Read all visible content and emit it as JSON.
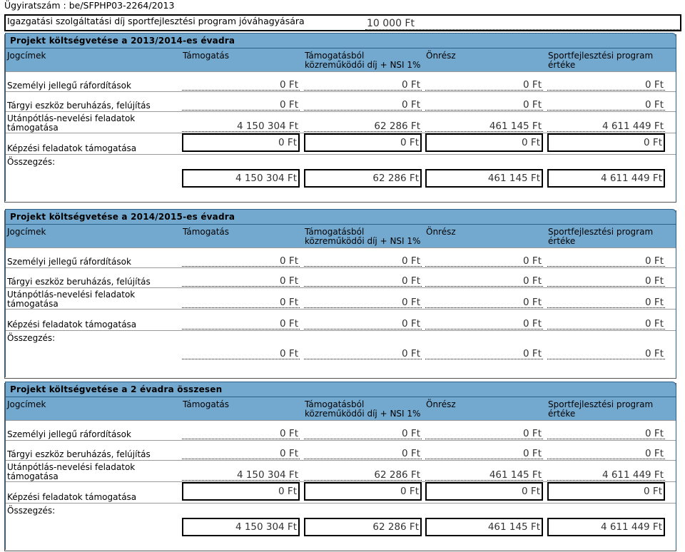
{
  "header": {
    "case_number": "Ügyiratszám : be/SFPHP03-2264/2013",
    "fee_label": "Igazgatási szolgáltatási díj sportfejlesztési program jóváhagyására",
    "fee_value": "10 000 Ft"
  },
  "columns": {
    "jogcimek": "Jogcímek",
    "tamogatas": "Támogatás",
    "dij_line1": "Támogatásból",
    "dij_line2": "közreműködői díj + NSI 1%",
    "onresz": "Önrész",
    "ertek_line1": "Sportfejlesztési program",
    "ertek_line2": "értéke"
  },
  "row_labels": {
    "szemelyi": "Személyi jellegű ráfordítások",
    "targyi": "Tárgyi eszköz beruházás, felújítás",
    "utanpotlas_line1": "Utánpótlás-nevelési feladatok",
    "utanpotlas_line2": "támogatása",
    "kepzesi": "Képzési feladatok támogatása",
    "osszegzes": "Összegzés:"
  },
  "sections": [
    {
      "title": "Projekt költségvetése a 2013/2014-es évadra",
      "rows": [
        [
          "0 Ft",
          "0 Ft",
          "0 Ft",
          "0 Ft"
        ],
        [
          "0 Ft",
          "0 Ft",
          "0 Ft",
          "0 Ft"
        ],
        [
          "4 150 304 Ft",
          "62 286 Ft",
          "461 145 Ft",
          "4 611 449 Ft"
        ],
        [
          "0 Ft",
          "0 Ft",
          "0 Ft",
          "0 Ft"
        ]
      ],
      "sum": [
        "4 150 304 Ft",
        "62 286 Ft",
        "461 145 Ft",
        "4 611 449 Ft"
      ]
    },
    {
      "title": "Projekt költségvetése a 2014/2015-es évadra",
      "rows": [
        [
          "0 Ft",
          "0 Ft",
          "0 Ft",
          "0 Ft"
        ],
        [
          "0 Ft",
          "0 Ft",
          "0 Ft",
          "0 Ft"
        ],
        [
          "0 Ft",
          "0 Ft",
          "0 Ft",
          "0 Ft"
        ],
        [
          "0 Ft",
          "0 Ft",
          "0 Ft",
          "0 Ft"
        ]
      ],
      "sum": [
        "0 Ft",
        "0 Ft",
        "0 Ft",
        "0 Ft"
      ]
    },
    {
      "title": "Projekt költségvetése a 2 évadra összesen",
      "rows": [
        [
          "0 Ft",
          "0 Ft",
          "0 Ft",
          "0 Ft"
        ],
        [
          "0 Ft",
          "0 Ft",
          "0 Ft",
          "0 Ft"
        ],
        [
          "4 150 304 Ft",
          "62 286 Ft",
          "461 145 Ft",
          "4 611 449 Ft"
        ],
        [
          "0 Ft",
          "0 Ft",
          "0 Ft",
          "0 Ft"
        ]
      ],
      "sum": [
        "4 150 304 Ft",
        "62 286 Ft",
        "461 145 Ft",
        "4 611 449 Ft"
      ]
    }
  ]
}
